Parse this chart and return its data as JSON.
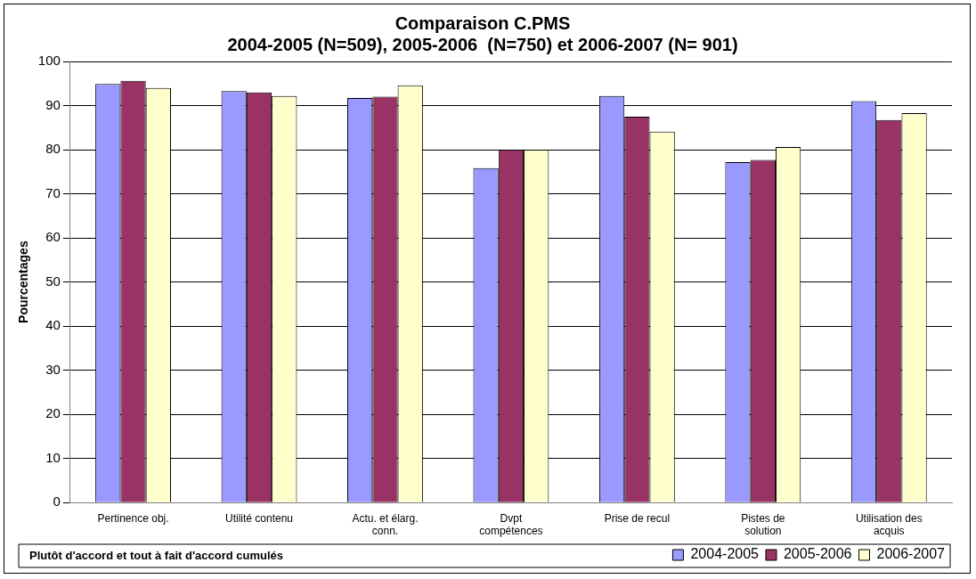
{
  "chart_data": {
    "type": "bar",
    "title": [
      "Comparaison C.PMS",
      "2004-2005 (N=509), 2005-2006  (N=750) et 2006-2007 (N= 901)"
    ],
    "ylabel": "Pourcentages",
    "categories": [
      [
        "Pertinence obj."
      ],
      [
        "Utilité contenu"
      ],
      [
        "Actu. et élarg.",
        "conn."
      ],
      [
        "Dvpt",
        "compétences"
      ],
      [
        "Prise de recul"
      ],
      [
        "Pistes de",
        "solution"
      ],
      [
        "Utilisation des",
        "acquis"
      ]
    ],
    "series": [
      {
        "name": "2004-2005",
        "color": "#9999ff",
        "values": [
          94.9,
          93.3,
          91.7,
          75.8,
          92.2,
          77.2,
          91.0
        ]
      },
      {
        "name": "2005-2006",
        "color": "#993366",
        "values": [
          95.6,
          93.0,
          92.0,
          80.0,
          87.5,
          77.7,
          86.7
        ]
      },
      {
        "name": "2006-2007",
        "color": "#ffffcc",
        "values": [
          94.0,
          92.2,
          94.6,
          80.0,
          84.1,
          80.6,
          88.3
        ]
      }
    ],
    "ylim": [
      0,
      100
    ],
    "yticks": [
      0,
      10,
      20,
      30,
      40,
      50,
      60,
      70,
      80,
      90,
      100
    ],
    "grid": "y",
    "legend": "bottom right",
    "annotations": [
      "Plutôt d'accord et tout à fait d'accord cumulés"
    ]
  }
}
